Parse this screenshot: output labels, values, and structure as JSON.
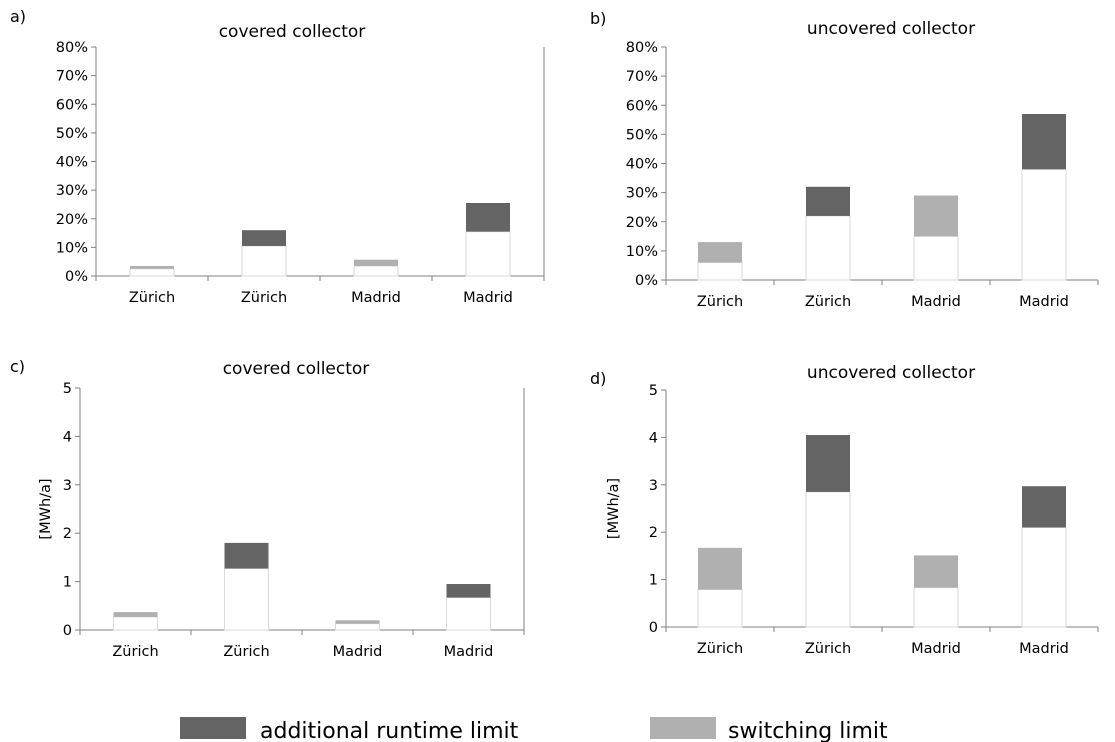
{
  "legend": {
    "items": [
      {
        "label": "additional runtime limit",
        "color": "#646464"
      },
      {
        "label": "switching limit",
        "color": "#b0b0b0"
      }
    ]
  },
  "colors": {
    "runtime": "#646464",
    "switching": "#b0b0b0",
    "base": "#ffffff",
    "base_edge": "#dadada",
    "axis": "#808080"
  },
  "chart_data": [
    {
      "panel": "a)",
      "type": "bar",
      "stacked": true,
      "title": "covered collector",
      "ylabel": "",
      "ylim": [
        0,
        0.8
      ],
      "y_ticks": [
        0,
        0.1,
        0.2,
        0.3,
        0.4,
        0.5,
        0.6,
        0.7,
        0.8
      ],
      "y_tick_labels": [
        "0%",
        "10%",
        "20%",
        "30%",
        "40%",
        "50%",
        "60%",
        "70%",
        "80%"
      ],
      "right_axis_line": true,
      "categories": [
        "Zürich",
        "Zürich",
        "Madrid",
        "Madrid"
      ],
      "series": [
        {
          "values": [
            0.025,
            0.105,
            0.035,
            0.155
          ]
        },
        {
          "values": [
            0.01,
            0.0,
            0.022,
            0.0
          ]
        },
        {
          "values": [
            0.0,
            0.055,
            0.0,
            0.1
          ]
        }
      ]
    },
    {
      "panel": "b)",
      "type": "bar",
      "stacked": true,
      "title": "uncovered collector",
      "ylabel": "",
      "ylim": [
        0,
        0.8
      ],
      "y_ticks": [
        0,
        0.1,
        0.2,
        0.3,
        0.4,
        0.5,
        0.6,
        0.7,
        0.8
      ],
      "y_tick_labels": [
        "0%",
        "10%",
        "20%",
        "30%",
        "40%",
        "50%",
        "60%",
        "70%",
        "80%"
      ],
      "right_axis_line": false,
      "categories": [
        "Zürich",
        "Zürich",
        "Madrid",
        "Madrid"
      ],
      "series": [
        {
          "values": [
            0.06,
            0.22,
            0.15,
            0.38
          ]
        },
        {
          "values": [
            0.07,
            0.0,
            0.14,
            0.0
          ]
        },
        {
          "values": [
            0.0,
            0.1,
            0.0,
            0.19
          ]
        }
      ]
    },
    {
      "panel": "c)",
      "type": "bar",
      "stacked": true,
      "title": "covered collector",
      "ylabel": "[MWh/a]",
      "ylim": [
        0,
        5
      ],
      "y_ticks": [
        0,
        1,
        2,
        3,
        4,
        5
      ],
      "y_tick_labels": [
        "0",
        "1",
        "2",
        "3",
        "4",
        "5"
      ],
      "right_axis_line": true,
      "categories": [
        "Zürich",
        "Zürich",
        "Madrid",
        "Madrid"
      ],
      "series": [
        {
          "values": [
            0.27,
            1.27,
            0.13,
            0.67
          ]
        },
        {
          "values": [
            0.1,
            0.0,
            0.07,
            0.0
          ]
        },
        {
          "values": [
            0.0,
            0.53,
            0.0,
            0.28
          ]
        }
      ]
    },
    {
      "panel": "d)",
      "type": "bar",
      "stacked": true,
      "title": "uncovered collector",
      "ylabel": "[MWh/a]",
      "ylim": [
        0,
        5
      ],
      "y_ticks": [
        0,
        1,
        2,
        3,
        4,
        5
      ],
      "y_tick_labels": [
        "0",
        "1",
        "2",
        "3",
        "4",
        "5"
      ],
      "right_axis_line": false,
      "categories": [
        "Zürich",
        "Zürich",
        "Madrid",
        "Madrid"
      ],
      "series": [
        {
          "values": [
            0.79,
            2.85,
            0.83,
            2.1
          ]
        },
        {
          "values": [
            0.88,
            0.0,
            0.68,
            0.0
          ]
        },
        {
          "values": [
            0.0,
            1.2,
            0.0,
            0.87
          ]
        }
      ]
    }
  ]
}
